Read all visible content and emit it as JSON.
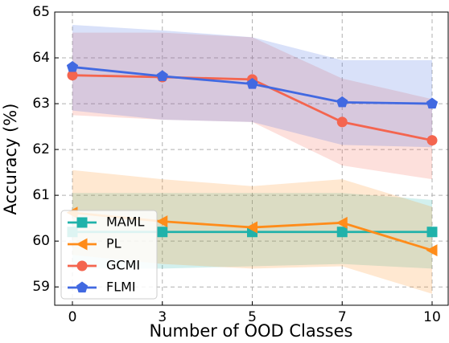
{
  "chart_data": {
    "type": "line",
    "x_label": "Number of OOD Classes",
    "y_label": "Accuracy (%)",
    "categories": [
      "0",
      "3",
      "5",
      "7",
      "10"
    ],
    "ylim": [
      58.6,
      65
    ],
    "yticks": [
      59,
      60,
      61,
      62,
      63,
      64,
      65
    ],
    "grid": true,
    "legend": "lower-left",
    "series": [
      {
        "name": "MAML",
        "color": "#20b2aa",
        "marker": "square",
        "values": [
          60.2,
          60.2,
          60.2,
          60.2,
          60.2
        ],
        "lower": [
          59.4,
          59.4,
          59.45,
          59.5,
          59.4
        ],
        "upper": [
          61.05,
          61.05,
          61.05,
          61.05,
          60.9
        ]
      },
      {
        "name": "PL",
        "color": "#ff8c1a",
        "marker": "triangle-left",
        "values": [
          60.62,
          60.43,
          60.3,
          60.4,
          59.8
        ],
        "lower": [
          59.7,
          59.5,
          59.4,
          59.45,
          58.85
        ],
        "upper": [
          61.55,
          61.35,
          61.2,
          61.35,
          60.75
        ]
      },
      {
        "name": "GCMI",
        "color": "#f4654f",
        "marker": "circle",
        "values": [
          63.62,
          63.58,
          63.53,
          62.6,
          62.2
        ],
        "lower": [
          62.75,
          62.65,
          62.6,
          61.65,
          61.35
        ],
        "upper": [
          64.55,
          64.55,
          64.45,
          63.55,
          63.1
        ]
      },
      {
        "name": "FLMI",
        "color": "#4169e1",
        "marker": "pentagon",
        "values": [
          63.8,
          63.6,
          63.43,
          63.03,
          63.0
        ],
        "lower": [
          62.85,
          62.65,
          62.6,
          62.1,
          62.05
        ],
        "upper": [
          64.72,
          64.6,
          64.45,
          63.95,
          63.95
        ]
      }
    ]
  }
}
